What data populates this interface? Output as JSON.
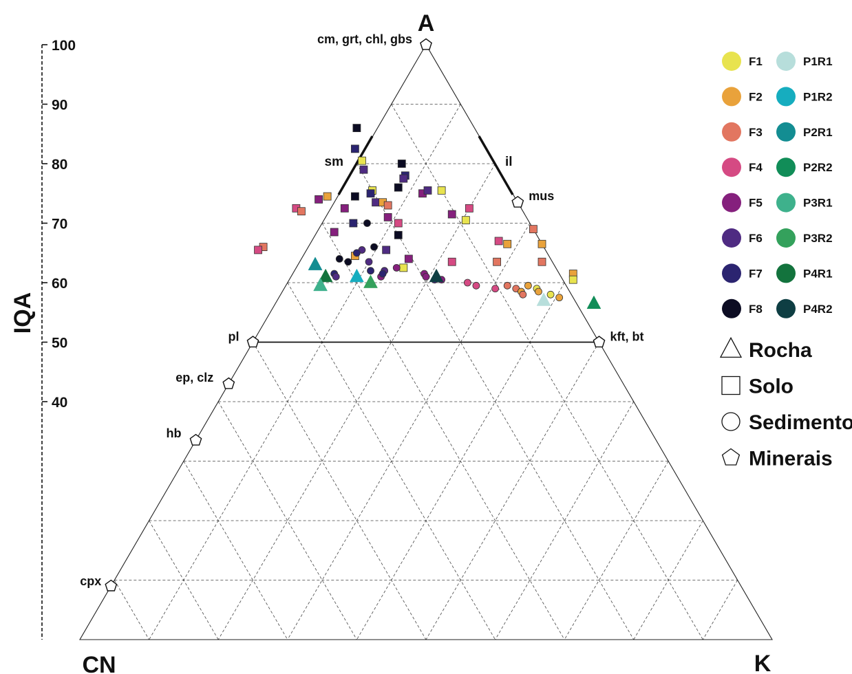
{
  "chart_data": {
    "type": "scatter",
    "subtype": "ternary",
    "vertices": {
      "top": "A",
      "left": "CN",
      "right": "K"
    },
    "iqa_axis": {
      "label": "IQA",
      "ticks": [
        "100",
        "90",
        "80",
        "70",
        "60",
        "50",
        "40"
      ],
      "range": [
        0,
        100
      ]
    },
    "grid": true,
    "legend_position": "right",
    "feldspar_line": {
      "from": "pl",
      "to": "kft, bt",
      "a": 50
    },
    "weathering_trend_lines": [
      {
        "label": "sm",
        "side": "CN-A"
      },
      {
        "label": "il",
        "side": "K-A"
      }
    ],
    "minerals": [
      {
        "label": "cm, grt, chl, gbs",
        "a": 100,
        "cn": 0,
        "k": 0
      },
      {
        "label": "mus",
        "a": 73.5,
        "cn": 0,
        "k": 26.5
      },
      {
        "label": "pl",
        "a": 50,
        "cn": 50,
        "k": 0
      },
      {
        "label": "kft, bt",
        "a": 50,
        "cn": 0,
        "k": 50
      },
      {
        "label": "ep, clz",
        "a": 43,
        "cn": 57,
        "k": 0
      },
      {
        "label": "hb",
        "a": 33.5,
        "cn": 66.5,
        "k": 0
      },
      {
        "label": "cpx",
        "a": 9,
        "cn": 91,
        "k": 0
      }
    ],
    "groups": [
      {
        "name": "F1",
        "color": "#e8e34f"
      },
      {
        "name": "F2",
        "color": "#e9a23b"
      },
      {
        "name": "F3",
        "color": "#e27660"
      },
      {
        "name": "F4",
        "color": "#d54a83"
      },
      {
        "name": "F5",
        "color": "#85207d"
      },
      {
        "name": "F6",
        "color": "#4f2b82"
      },
      {
        "name": "F7",
        "color": "#2b2470"
      },
      {
        "name": "F8",
        "color": "#0c0c23"
      },
      {
        "name": "P1R1",
        "color": "#b7dedb"
      },
      {
        "name": "P1R2",
        "color": "#16adbf"
      },
      {
        "name": "P2R1",
        "color": "#138d92"
      },
      {
        "name": "P2R2",
        "color": "#118d58"
      },
      {
        "name": "P3R1",
        "color": "#3eb18c"
      },
      {
        "name": "P3R2",
        "color": "#34a15c"
      },
      {
        "name": "P4R1",
        "color": "#13733d"
      },
      {
        "name": "P4R2",
        "color": "#0e3e43"
      }
    ],
    "shape_legend": [
      {
        "shape": "triangle",
        "label": "Rocha"
      },
      {
        "shape": "square",
        "label": "Solo"
      },
      {
        "shape": "circle",
        "label": "Sedimento"
      },
      {
        "shape": "pentagon",
        "label": "Minerais"
      }
    ],
    "points": [
      {
        "group": "F8",
        "shape": "square",
        "a": 86,
        "cn": 17,
        "k": -3
      },
      {
        "group": "F7",
        "shape": "square",
        "a": 82.5,
        "cn": 19,
        "k": -1.5
      },
      {
        "group": "F1",
        "shape": "square",
        "a": 80.5,
        "cn": 19,
        "k": 0.5
      },
      {
        "group": "F6",
        "shape": "square",
        "a": 79,
        "cn": 19.5,
        "k": 1.5
      },
      {
        "group": "F8",
        "shape": "square",
        "a": 80,
        "cn": 13.5,
        "k": 6.5
      },
      {
        "group": "F7",
        "shape": "square",
        "a": 78,
        "cn": 14,
        "k": 8
      },
      {
        "group": "F6",
        "shape": "square",
        "a": 77.5,
        "cn": 14.5,
        "k": 8
      },
      {
        "group": "F8",
        "shape": "square",
        "a": 76,
        "cn": 16,
        "k": 8
      },
      {
        "group": "F1",
        "shape": "square",
        "a": 75.5,
        "cn": 20,
        "k": 4.5
      },
      {
        "group": "F7",
        "shape": "square",
        "a": 75,
        "cn": 20.5,
        "k": 4.5
      },
      {
        "group": "F8",
        "shape": "square",
        "a": 74.5,
        "cn": 23,
        "k": 2.5
      },
      {
        "group": "F2",
        "shape": "square",
        "a": 74.5,
        "cn": 27,
        "k": -1.5
      },
      {
        "group": "F5",
        "shape": "square",
        "a": 74,
        "cn": 28.5,
        "k": -2.5
      },
      {
        "group": "F6",
        "shape": "square",
        "a": 73.5,
        "cn": 20.5,
        "k": 6
      },
      {
        "group": "F2",
        "shape": "square",
        "a": 73.5,
        "cn": 19.5,
        "k": 7
      },
      {
        "group": "F3",
        "shape": "square",
        "a": 73,
        "cn": 19,
        "k": 8
      },
      {
        "group": "F5",
        "shape": "square",
        "a": 72.5,
        "cn": 25.5,
        "k": 2
      },
      {
        "group": "F4",
        "shape": "square",
        "a": 72.5,
        "cn": 32.5,
        "k": -5
      },
      {
        "group": "F3",
        "shape": "square",
        "a": 72,
        "cn": 32,
        "k": -4
      },
      {
        "group": "F5",
        "shape": "square",
        "a": 75,
        "cn": 13,
        "k": 12
      },
      {
        "group": "F6",
        "shape": "square",
        "a": 75.5,
        "cn": 12,
        "k": 12.5
      },
      {
        "group": "F1",
        "shape": "square",
        "a": 75.5,
        "cn": 10,
        "k": 14.5
      },
      {
        "group": "F4",
        "shape": "square",
        "a": 72.5,
        "cn": 7.5,
        "k": 20
      },
      {
        "group": "F5",
        "shape": "square",
        "a": 71.5,
        "cn": 10.5,
        "k": 18
      },
      {
        "group": "F1",
        "shape": "square",
        "a": 70.5,
        "cn": 9,
        "k": 20.5
      },
      {
        "group": "F7",
        "shape": "square",
        "a": 70,
        "cn": 25.5,
        "k": 4.5
      },
      {
        "group": "F5",
        "shape": "square",
        "a": 71,
        "cn": 20,
        "k": 9
      },
      {
        "group": "F4",
        "shape": "square",
        "a": 70,
        "cn": 19,
        "k": 11
      },
      {
        "group": "F5",
        "shape": "square",
        "a": 68.5,
        "cn": 29,
        "k": 2.5
      },
      {
        "group": "F8",
        "shape": "square",
        "a": 68,
        "cn": 20,
        "k": 12
      },
      {
        "group": "F3",
        "shape": "square",
        "a": 69,
        "cn": 0,
        "k": 31
      },
      {
        "group": "F4",
        "shape": "square",
        "a": 67,
        "cn": 6,
        "k": 27
      },
      {
        "group": "F2",
        "shape": "square",
        "a": 66.5,
        "cn": 5,
        "k": 28.5
      },
      {
        "group": "F2",
        "shape": "square",
        "a": 66.5,
        "cn": 0,
        "k": 33.5
      },
      {
        "group": "F3",
        "shape": "square",
        "a": 66,
        "cn": 40.5,
        "k": -6.5
      },
      {
        "group": "F4",
        "shape": "square",
        "a": 65.5,
        "cn": 41.5,
        "k": -7
      },
      {
        "group": "F6",
        "shape": "square",
        "a": 65.5,
        "cn": 23,
        "k": 11.5
      },
      {
        "group": "F2",
        "shape": "square",
        "a": 64.5,
        "cn": 28,
        "k": 7.5
      },
      {
        "group": "F5",
        "shape": "square",
        "a": 64,
        "cn": 20.5,
        "k": 15.5
      },
      {
        "group": "F4",
        "shape": "square",
        "a": 63.5,
        "cn": 14.5,
        "k": 22
      },
      {
        "group": "F3",
        "shape": "square",
        "a": 63.5,
        "cn": 8,
        "k": 28.5
      },
      {
        "group": "F3",
        "shape": "square",
        "a": 63.5,
        "cn": 1.5,
        "k": 35
      },
      {
        "group": "F1",
        "shape": "square",
        "a": 62.5,
        "cn": 22,
        "k": 15.5
      },
      {
        "group": "F2",
        "shape": "square",
        "a": 61.5,
        "cn": -2,
        "k": 40.5
      },
      {
        "group": "F1",
        "shape": "square",
        "a": 60.5,
        "cn": -1.5,
        "k": 41
      },
      {
        "group": "F8",
        "shape": "circle",
        "a": 70,
        "cn": 23.5,
        "k": 6.5
      },
      {
        "group": "F8",
        "shape": "circle",
        "a": 66,
        "cn": 24.5,
        "k": 9.5
      },
      {
        "group": "F6",
        "shape": "circle",
        "a": 65.5,
        "cn": 26.5,
        "k": 8
      },
      {
        "group": "F7",
        "shape": "circle",
        "a": 65,
        "cn": 27.5,
        "k": 7.5
      },
      {
        "group": "F8",
        "shape": "circle",
        "a": 64,
        "cn": 30.5,
        "k": 5.5
      },
      {
        "group": "F8",
        "shape": "circle",
        "a": 63.5,
        "cn": 29.5,
        "k": 7
      },
      {
        "group": "F6",
        "shape": "circle",
        "a": 63.5,
        "cn": 26.5,
        "k": 10
      },
      {
        "group": "F5",
        "shape": "circle",
        "a": 62.5,
        "cn": 23,
        "k": 14.5
      },
      {
        "group": "F6",
        "shape": "circle",
        "a": 62,
        "cn": 25,
        "k": 13
      },
      {
        "group": "F7",
        "shape": "circle",
        "a": 62,
        "cn": 27,
        "k": 11
      },
      {
        "group": "F7",
        "shape": "circle",
        "a": 61.5,
        "cn": 32.5,
        "k": 6
      },
      {
        "group": "F6",
        "shape": "circle",
        "a": 61,
        "cn": 32.5,
        "k": 6.5
      },
      {
        "group": "F5",
        "shape": "circle",
        "a": 61,
        "cn": 26,
        "k": 13
      },
      {
        "group": "F7",
        "shape": "circle",
        "a": 61.5,
        "cn": 25.5,
        "k": 13
      },
      {
        "group": "F5",
        "shape": "circle",
        "a": 61.5,
        "cn": 19.5,
        "k": 19
      },
      {
        "group": "F5",
        "shape": "circle",
        "a": 61,
        "cn": 19.5,
        "k": 19.5
      },
      {
        "group": "F6",
        "shape": "circle",
        "a": 60.5,
        "cn": 18.5,
        "k": 21
      },
      {
        "group": "F5",
        "shape": "circle",
        "a": 60.5,
        "cn": 17.5,
        "k": 22
      },
      {
        "group": "F4",
        "shape": "circle",
        "a": 60,
        "cn": 14,
        "k": 26
      },
      {
        "group": "F4",
        "shape": "circle",
        "a": 59.5,
        "cn": 13,
        "k": 27.5
      },
      {
        "group": "F4",
        "shape": "circle",
        "a": 59,
        "cn": 10.5,
        "k": 30.5
      },
      {
        "group": "F3",
        "shape": "circle",
        "a": 59.5,
        "cn": 8.5,
        "k": 32
      },
      {
        "group": "F3",
        "shape": "circle",
        "a": 59,
        "cn": 7.5,
        "k": 33.5
      },
      {
        "group": "F2",
        "shape": "circle",
        "a": 59.5,
        "cn": 5.5,
        "k": 35
      },
      {
        "group": "F1",
        "shape": "circle",
        "a": 59,
        "cn": 4.5,
        "k": 36.5
      },
      {
        "group": "F2",
        "shape": "circle",
        "a": 58.5,
        "cn": 7,
        "k": 34.5
      },
      {
        "group": "F3",
        "shape": "circle",
        "a": 58,
        "cn": 7,
        "k": 35
      },
      {
        "group": "F2",
        "shape": "circle",
        "a": 58.5,
        "cn": 4.5,
        "k": 37
      },
      {
        "group": "F1",
        "shape": "circle",
        "a": 58,
        "cn": 3,
        "k": 39
      },
      {
        "group": "F2",
        "shape": "circle",
        "a": 57.5,
        "cn": 2,
        "k": 40.5
      },
      {
        "group": "P2R1",
        "shape": "triangle",
        "a": 63,
        "cn": 34.5,
        "k": 2.5
      },
      {
        "group": "P4R1",
        "shape": "triangle",
        "a": 61,
        "cn": 34,
        "k": 5
      },
      {
        "group": "P1R2",
        "shape": "triangle",
        "a": 61,
        "cn": 29.5,
        "k": 9.5
      },
      {
        "group": "P3R1",
        "shape": "triangle",
        "a": 59.5,
        "cn": 35.5,
        "k": 5
      },
      {
        "group": "P3R2",
        "shape": "triangle",
        "a": 60,
        "cn": 28,
        "k": 12
      },
      {
        "group": "P4R2",
        "shape": "triangle",
        "a": 61,
        "cn": 18,
        "k": 21
      },
      {
        "group": "P1R1",
        "shape": "triangle",
        "a": 57,
        "cn": 4.5,
        "k": 38.5
      },
      {
        "group": "P2R2",
        "shape": "triangle",
        "a": 56.5,
        "cn": -2.5,
        "k": 46
      }
    ]
  }
}
